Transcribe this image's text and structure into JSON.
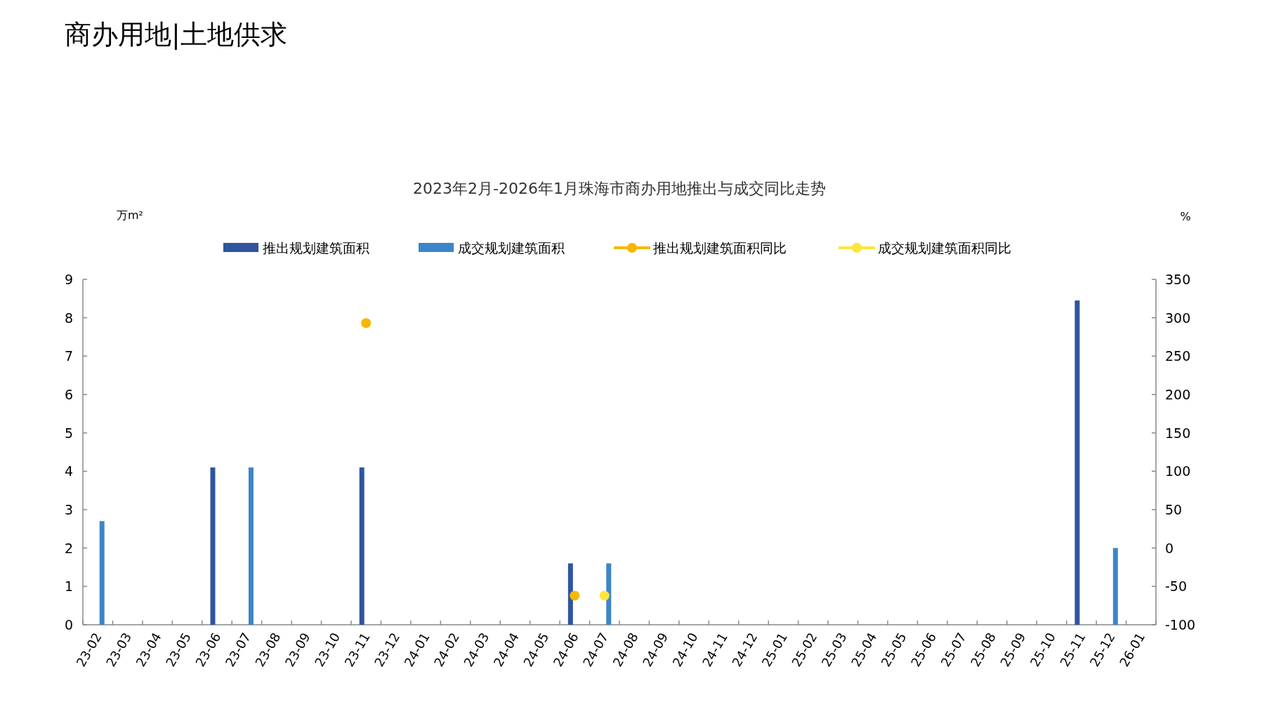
{
  "chart_data": {
    "type": "bar",
    "title": "2023年2月-2026年1月珠海市商办用地推出与成交同比走势",
    "annotations": [
      "商办用地|土地供求"
    ],
    "categories": [
      "23-02",
      "23-03",
      "23-04",
      "23-05",
      "23-06",
      "23-07",
      "23-08",
      "23-09",
      "23-10",
      "23-11",
      "23-12",
      "24-01",
      "24-02",
      "24-03",
      "24-04",
      "24-05",
      "24-06",
      "24-07",
      "24-08",
      "24-09",
      "24-10",
      "24-11",
      "24-12",
      "25-01",
      "25-02",
      "25-03",
      "25-04",
      "25-05",
      "25-06",
      "25-07",
      "25-08",
      "25-09",
      "25-10",
      "25-11",
      "25-12",
      "26-01"
    ],
    "series": [
      {
        "name": "推出规划建筑面积",
        "color": "#2f559f",
        "values": [
          null,
          null,
          null,
          null,
          4.1,
          null,
          null,
          null,
          null,
          4.1,
          null,
          null,
          null,
          null,
          null,
          null,
          1.6,
          null,
          null,
          null,
          null,
          null,
          null,
          null,
          null,
          null,
          null,
          null,
          null,
          null,
          null,
          null,
          null,
          8.45,
          null,
          null
        ]
      },
      {
        "name": "成交规划建筑面积",
        "color": "#3d85c8",
        "values": [
          2.7,
          null,
          null,
          null,
          null,
          4.1,
          null,
          null,
          null,
          null,
          null,
          null,
          null,
          null,
          null,
          null,
          null,
          1.6,
          null,
          null,
          null,
          null,
          null,
          null,
          null,
          null,
          null,
          null,
          null,
          null,
          null,
          null,
          null,
          null,
          2.0,
          null
        ]
      },
      {
        "name": "推出规划建筑面积同比",
        "type": "scatter",
        "axis": "y2",
        "marker": "circle",
        "color": "#f5b800",
        "values": [
          null,
          null,
          null,
          null,
          null,
          null,
          null,
          null,
          null,
          293,
          null,
          null,
          null,
          null,
          null,
          null,
          -62,
          null,
          null,
          null,
          null,
          null,
          null,
          null,
          null,
          null,
          null,
          null,
          null,
          null,
          null,
          null,
          null,
          null,
          null,
          null
        ]
      },
      {
        "name": "成交规划建筑面积同比",
        "type": "scatter",
        "axis": "y2",
        "marker": "circle",
        "color": "#fde53a",
        "values": [
          null,
          null,
          null,
          null,
          null,
          null,
          null,
          null,
          null,
          null,
          null,
          null,
          null,
          null,
          null,
          null,
          null,
          -62,
          null,
          null,
          null,
          null,
          null,
          null,
          null,
          null,
          null,
          null,
          null,
          null,
          null,
          null,
          null,
          null,
          null,
          null
        ]
      }
    ],
    "ylabel": "万m²",
    "y2label": "%",
    "ylim": [
      0,
      9
    ],
    "yticks": [
      0,
      1,
      2,
      3,
      4,
      5,
      6,
      7,
      8,
      9
    ],
    "y2lim": [
      -100,
      350
    ],
    "y2ticks": [
      -100,
      -50,
      0,
      50,
      100,
      150,
      200,
      250,
      300,
      350
    ],
    "legend": "top",
    "grid": false
  }
}
